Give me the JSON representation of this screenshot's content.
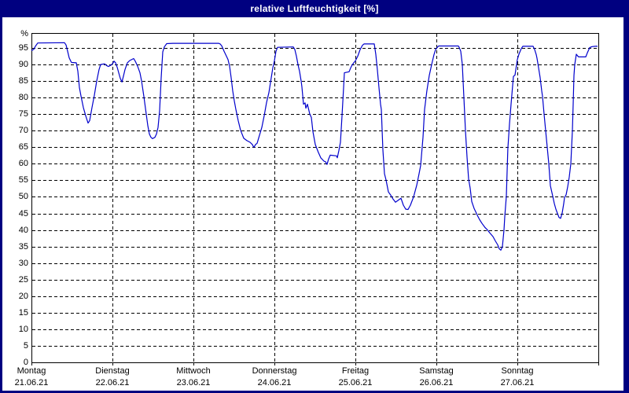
{
  "window": {
    "title": "relative Luftfeuchtigkeit [%]"
  },
  "frame": {
    "titlebar_color": "#000080",
    "title_text_color": "#ffffff",
    "background_color": "#ffffff",
    "grid_color": "#000000",
    "line_color": "#0000cc"
  },
  "chart_data": {
    "type": "line",
    "title": "relative Luftfeuchtigkeit [%]",
    "unit_label": "%",
    "ylabel": "relative Luftfeuchtigkeit",
    "ylim": [
      0,
      100
    ],
    "yticks": [
      0,
      5,
      10,
      15,
      20,
      25,
      30,
      35,
      40,
      45,
      50,
      55,
      60,
      65,
      70,
      75,
      80,
      85,
      90,
      95
    ],
    "grid": "dashed",
    "legend": "none",
    "x_axis_days": [
      {
        "name": "Montag",
        "date": "21.06.21"
      },
      {
        "name": "Dienstag",
        "date": "22.06.21"
      },
      {
        "name": "Mittwoch",
        "date": "23.06.21"
      },
      {
        "name": "Donnerstag",
        "date": "24.06.21"
      },
      {
        "name": "Freitag",
        "date": "25.06.21"
      },
      {
        "name": "Samstag",
        "date": "26.06.21"
      },
      {
        "name": "Sonntag",
        "date": "27.06.21"
      }
    ],
    "series": [
      {
        "name": "relative Luftfeuchtigkeit",
        "unit": "%",
        "x_unit": "days since Montag 21.06.21 00:00",
        "points": [
          [
            0.0,
            94.2
          ],
          [
            0.029,
            94.6
          ],
          [
            0.049,
            95.5
          ],
          [
            0.078,
            96.5
          ],
          [
            0.408,
            96.6
          ],
          [
            0.427,
            95.9
          ],
          [
            0.447,
            94.0
          ],
          [
            0.466,
            92.0
          ],
          [
            0.485,
            91.0
          ],
          [
            0.495,
            90.6
          ],
          [
            0.553,
            90.5
          ],
          [
            0.573,
            88.0
          ],
          [
            0.592,
            83.0
          ],
          [
            0.612,
            80.5
          ],
          [
            0.641,
            77.0
          ],
          [
            0.67,
            74.5
          ],
          [
            0.699,
            72.3
          ],
          [
            0.718,
            73.0
          ],
          [
            0.748,
            77.0
          ],
          [
            0.777,
            80.7
          ],
          [
            0.806,
            85.0
          ],
          [
            0.835,
            88.5
          ],
          [
            0.854,
            90.0
          ],
          [
            0.903,
            90.2
          ],
          [
            0.932,
            89.6
          ],
          [
            0.951,
            89.4
          ],
          [
            0.981,
            89.8
          ],
          [
            1.0,
            90.2
          ],
          [
            1.019,
            91.0
          ],
          [
            1.039,
            90.5
          ],
          [
            1.058,
            89.2
          ],
          [
            1.078,
            87.5
          ],
          [
            1.097,
            85.8
          ],
          [
            1.117,
            84.7
          ],
          [
            1.136,
            86.5
          ],
          [
            1.155,
            88.5
          ],
          [
            1.184,
            90.5
          ],
          [
            1.214,
            91.2
          ],
          [
            1.262,
            91.8
          ],
          [
            1.282,
            91.0
          ],
          [
            1.311,
            89.5
          ],
          [
            1.34,
            87.5
          ],
          [
            1.359,
            85.1
          ],
          [
            1.388,
            80.3
          ],
          [
            1.417,
            75.0
          ],
          [
            1.437,
            71.5
          ],
          [
            1.456,
            69.0
          ],
          [
            1.476,
            68.0
          ],
          [
            1.495,
            67.6
          ],
          [
            1.524,
            68.0
          ],
          [
            1.544,
            69.0
          ],
          [
            1.563,
            71.0
          ],
          [
            1.583,
            76.0
          ],
          [
            1.602,
            86.0
          ],
          [
            1.621,
            93.8
          ],
          [
            1.641,
            95.3
          ],
          [
            1.67,
            96.3
          ],
          [
            1.748,
            96.4
          ],
          [
            2.0,
            96.4
          ],
          [
            2.311,
            96.4
          ],
          [
            2.33,
            96.2
          ],
          [
            2.35,
            95.6
          ],
          [
            2.379,
            94.0
          ],
          [
            2.408,
            92.5
          ],
          [
            2.427,
            91.5
          ],
          [
            2.447,
            89.5
          ],
          [
            2.466,
            86.0
          ],
          [
            2.485,
            82.0
          ],
          [
            2.505,
            79.0
          ],
          [
            2.524,
            76.4
          ],
          [
            2.553,
            73.0
          ],
          [
            2.583,
            70.1
          ],
          [
            2.621,
            67.7
          ],
          [
            2.66,
            67.0
          ],
          [
            2.699,
            66.5
          ],
          [
            2.728,
            65.8
          ],
          [
            2.738,
            65.3
          ],
          [
            2.748,
            65.0
          ],
          [
            2.767,
            65.8
          ],
          [
            2.786,
            66.2
          ],
          [
            2.816,
            68.6
          ],
          [
            2.845,
            71.0
          ],
          [
            2.874,
            74.5
          ],
          [
            2.903,
            78.5
          ],
          [
            2.932,
            81.5
          ],
          [
            2.961,
            86.0
          ],
          [
            2.981,
            89.0
          ],
          [
            3.0,
            91.1
          ],
          [
            3.019,
            94.0
          ],
          [
            3.039,
            95.2
          ],
          [
            3.233,
            95.3
          ],
          [
            3.252,
            94.5
          ],
          [
            3.272,
            92.5
          ],
          [
            3.291,
            90.0
          ],
          [
            3.311,
            87.9
          ],
          [
            3.33,
            85.0
          ],
          [
            3.34,
            83.2
          ],
          [
            3.359,
            78.0
          ],
          [
            3.379,
            78.4
          ],
          [
            3.388,
            76.8
          ],
          [
            3.408,
            78.0
          ],
          [
            3.437,
            75.0
          ],
          [
            3.456,
            74.0
          ],
          [
            3.476,
            69.7
          ],
          [
            3.505,
            65.8
          ],
          [
            3.544,
            63.4
          ],
          [
            3.573,
            61.8
          ],
          [
            3.612,
            60.8
          ],
          [
            3.631,
            60.6
          ],
          [
            3.65,
            59.8
          ],
          [
            3.67,
            61.5
          ],
          [
            3.689,
            62.6
          ],
          [
            3.767,
            62.4
          ],
          [
            3.777,
            61.8
          ],
          [
            3.796,
            64.0
          ],
          [
            3.816,
            66.5
          ],
          [
            3.835,
            74.5
          ],
          [
            3.854,
            83.0
          ],
          [
            3.864,
            87.5
          ],
          [
            3.922,
            87.8
          ],
          [
            3.942,
            89.0
          ],
          [
            3.961,
            89.9
          ],
          [
            3.981,
            90.5
          ],
          [
            4.0,
            91.1
          ],
          [
            4.029,
            92.5
          ],
          [
            4.058,
            94.5
          ],
          [
            4.087,
            95.8
          ],
          [
            4.107,
            96.2
          ],
          [
            4.233,
            96.2
          ],
          [
            4.252,
            93.0
          ],
          [
            4.272,
            88.3
          ],
          [
            4.291,
            83.0
          ],
          [
            4.311,
            78.0
          ],
          [
            4.32,
            76.4
          ],
          [
            4.34,
            64.1
          ],
          [
            4.359,
            57.0
          ],
          [
            4.379,
            55.1
          ],
          [
            4.408,
            51.5
          ],
          [
            4.437,
            50.5
          ],
          [
            4.466,
            49.3
          ],
          [
            4.495,
            48.4
          ],
          [
            4.524,
            48.9
          ],
          [
            4.563,
            49.6
          ],
          [
            4.592,
            47.5
          ],
          [
            4.621,
            46.3
          ],
          [
            4.65,
            46.2
          ],
          [
            4.68,
            47.5
          ],
          [
            4.718,
            50.0
          ],
          [
            4.757,
            53.5
          ],
          [
            4.786,
            57.0
          ],
          [
            4.806,
            59.5
          ],
          [
            4.835,
            68.0
          ],
          [
            4.854,
            76.4
          ],
          [
            4.883,
            82.0
          ],
          [
            4.913,
            86.7
          ],
          [
            4.942,
            90.0
          ],
          [
            4.971,
            93.0
          ],
          [
            4.99,
            94.5
          ],
          [
            5.0,
            94.8
          ],
          [
            5.019,
            95.4
          ],
          [
            5.029,
            95.6
          ],
          [
            5.272,
            95.6
          ],
          [
            5.282,
            95.2
          ],
          [
            5.301,
            94.0
          ],
          [
            5.32,
            90.0
          ],
          [
            5.34,
            80.0
          ],
          [
            5.359,
            70.0
          ],
          [
            5.379,
            62.0
          ],
          [
            5.398,
            55.4
          ],
          [
            5.417,
            52.6
          ],
          [
            5.437,
            48.6
          ],
          [
            5.466,
            46.5
          ],
          [
            5.485,
            45.5
          ],
          [
            5.515,
            44.0
          ],
          [
            5.534,
            43.1
          ],
          [
            5.563,
            42.0
          ],
          [
            5.602,
            40.7
          ],
          [
            5.631,
            40.0
          ],
          [
            5.66,
            39.1
          ],
          [
            5.699,
            38.0
          ],
          [
            5.728,
            36.7
          ],
          [
            5.757,
            35.5
          ],
          [
            5.777,
            34.3
          ],
          [
            5.796,
            33.9
          ],
          [
            5.816,
            35.0
          ],
          [
            5.835,
            40.0
          ],
          [
            5.845,
            44.0
          ],
          [
            5.864,
            50.2
          ],
          [
            5.883,
            64.5
          ],
          [
            5.903,
            72.0
          ],
          [
            5.922,
            78.0
          ],
          [
            5.951,
            86.4
          ],
          [
            5.971,
            86.8
          ],
          [
            5.99,
            90.0
          ],
          [
            6.0,
            91.5
          ],
          [
            6.019,
            93.1
          ],
          [
            6.049,
            94.8
          ],
          [
            6.068,
            95.5
          ],
          [
            6.194,
            95.5
          ],
          [
            6.214,
            94.5
          ],
          [
            6.233,
            93.0
          ],
          [
            6.243,
            91.9
          ],
          [
            6.262,
            89.0
          ],
          [
            6.282,
            86.0
          ],
          [
            6.301,
            82.0
          ],
          [
            6.311,
            80.4
          ],
          [
            6.33,
            75.0
          ],
          [
            6.35,
            70.0
          ],
          [
            6.369,
            65.0
          ],
          [
            6.388,
            60.0
          ],
          [
            6.408,
            53.4
          ],
          [
            6.437,
            50.2
          ],
          [
            6.456,
            48.0
          ],
          [
            6.476,
            46.3
          ],
          [
            6.495,
            45.0
          ],
          [
            6.515,
            43.8
          ],
          [
            6.534,
            43.5
          ],
          [
            6.553,
            45.1
          ],
          [
            6.573,
            48.0
          ],
          [
            6.583,
            49.8
          ],
          [
            6.602,
            50.6
          ],
          [
            6.621,
            53.0
          ],
          [
            6.641,
            56.0
          ],
          [
            6.66,
            60.0
          ],
          [
            6.68,
            70.0
          ],
          [
            6.689,
            78.0
          ],
          [
            6.699,
            86.7
          ],
          [
            6.709,
            90.0
          ],
          [
            6.728,
            93.1
          ],
          [
            6.748,
            92.5
          ],
          [
            6.757,
            92.3
          ],
          [
            6.845,
            92.3
          ],
          [
            6.864,
            93.5
          ],
          [
            6.893,
            95.1
          ],
          [
            6.922,
            95.4
          ],
          [
            6.961,
            95.5
          ],
          [
            6.99,
            95.5
          ]
        ]
      }
    ]
  }
}
